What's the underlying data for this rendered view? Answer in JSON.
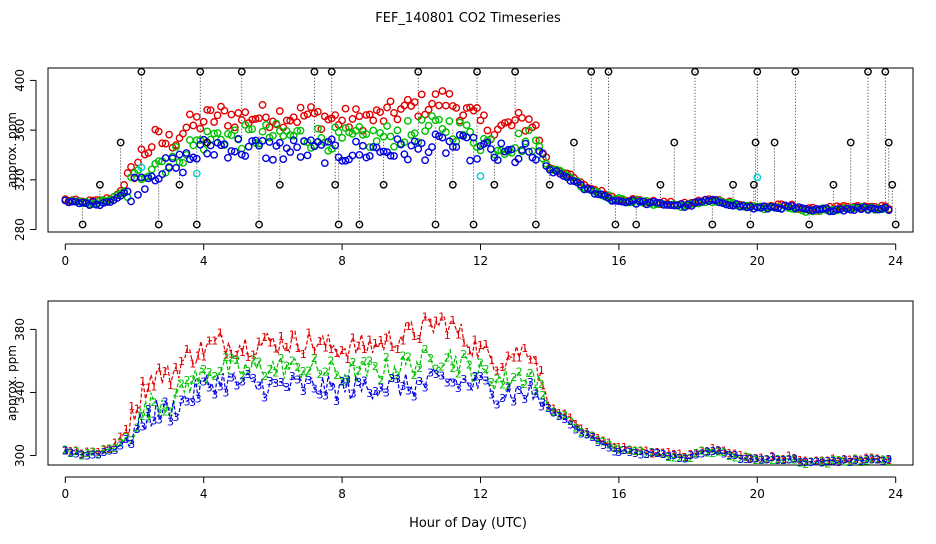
{
  "title": "FEF_140801  CO2 Timeseries",
  "xlabel": "Hour of Day (UTC)",
  "colors": {
    "series1": "#e00000",
    "series2": "#00c000",
    "series3": "#0000e0",
    "outlier": "#000000",
    "flag": "#00d0d0",
    "axis": "#000000"
  },
  "chart_data": [
    {
      "type": "scatter",
      "panel": "top",
      "ylabel": "approx. ppm",
      "xlim": [
        -0.5,
        24.5
      ],
      "ylim": [
        278,
        410
      ],
      "xticks": [
        0,
        4,
        8,
        12,
        16,
        20,
        24
      ],
      "yticks": [
        280,
        320,
        360,
        400
      ],
      "xtick_labels": [
        "0",
        "4",
        "8",
        "12",
        "16",
        "20",
        "24"
      ],
      "ytick_labels": [
        "280",
        "320",
        "360",
        "400"
      ],
      "grid": false,
      "outlier_high": 407,
      "outlier_low": 284,
      "marker": "circle",
      "series_keys": [
        "s1",
        "s2",
        "s3"
      ],
      "profile": {
        "hours": [
          0,
          0.5,
          1.0,
          1.4,
          1.8,
          2.2,
          2.6,
          3.0,
          3.5,
          4.0,
          4.5,
          5.0,
          6.0,
          7.0,
          8.0,
          9.0,
          10.0,
          11.0,
          12.0,
          12.5,
          13.0,
          13.5,
          14.0,
          14.5,
          15.0,
          15.5,
          15.9,
          16.0,
          17.0,
          18.0,
          18.5,
          19.0,
          19.5,
          20.0,
          20.5,
          21.0,
          21.5,
          22.0,
          23.0,
          23.9
        ],
        "s1": [
          304,
          302,
          303,
          306,
          318,
          340,
          352,
          350,
          362,
          368,
          372,
          370,
          372,
          372,
          368,
          370,
          378,
          385,
          366,
          360,
          365,
          368,
          330,
          325,
          315,
          310,
          305,
          305,
          302,
          300,
          304,
          303,
          300,
          298,
          299,
          299,
          296,
          297,
          298,
          298
        ],
        "s2": [
          303,
          301,
          302,
          305,
          312,
          326,
          336,
          334,
          345,
          352,
          356,
          354,
          356,
          355,
          352,
          354,
          358,
          364,
          352,
          348,
          350,
          352,
          330,
          324,
          314,
          309,
          304,
          304,
          301,
          299,
          303,
          302,
          299,
          297,
          298,
          298,
          295,
          296,
          297,
          297
        ],
        "s3": [
          302,
          301,
          301,
          304,
          310,
          320,
          328,
          328,
          336,
          344,
          348,
          346,
          344,
          344,
          342,
          344,
          344,
          348,
          344,
          340,
          340,
          340,
          328,
          322,
          313,
          308,
          303,
          303,
          301,
          299,
          303,
          302,
          299,
          297,
          298,
          298,
          295,
          296,
          297,
          297
        ]
      },
      "outliers": [
        {
          "x": 0.5,
          "y": 284
        },
        {
          "x": 1.0,
          "y": 316
        },
        {
          "x": 1.6,
          "y": 350
        },
        {
          "x": 2.2,
          "y": 407
        },
        {
          "x": 2.7,
          "y": 284
        },
        {
          "x": 3.3,
          "y": 316
        },
        {
          "x": 3.8,
          "y": 284
        },
        {
          "x": 3.9,
          "y": 407
        },
        {
          "x": 4.1,
          "y": 350
        },
        {
          "x": 5.1,
          "y": 407
        },
        {
          "x": 5.6,
          "y": 284
        },
        {
          "x": 6.2,
          "y": 316
        },
        {
          "x": 7.2,
          "y": 407
        },
        {
          "x": 7.7,
          "y": 407
        },
        {
          "x": 7.8,
          "y": 316
        },
        {
          "x": 7.9,
          "y": 284
        },
        {
          "x": 8.5,
          "y": 284
        },
        {
          "x": 9.2,
          "y": 316
        },
        {
          "x": 10.2,
          "y": 407
        },
        {
          "x": 10.7,
          "y": 284
        },
        {
          "x": 11.2,
          "y": 316
        },
        {
          "x": 11.8,
          "y": 284
        },
        {
          "x": 11.9,
          "y": 407
        },
        {
          "x": 12.4,
          "y": 316
        },
        {
          "x": 13.0,
          "y": 407
        },
        {
          "x": 13.6,
          "y": 284
        },
        {
          "x": 14.0,
          "y": 316
        },
        {
          "x": 14.7,
          "y": 350
        },
        {
          "x": 15.2,
          "y": 407
        },
        {
          "x": 15.7,
          "y": 407
        },
        {
          "x": 15.9,
          "y": 284
        },
        {
          "x": 16.5,
          "y": 284
        },
        {
          "x": 17.2,
          "y": 316
        },
        {
          "x": 17.6,
          "y": 350
        },
        {
          "x": 18.2,
          "y": 407
        },
        {
          "x": 18.7,
          "y": 284
        },
        {
          "x": 19.3,
          "y": 316
        },
        {
          "x": 19.8,
          "y": 284
        },
        {
          "x": 19.9,
          "y": 316
        },
        {
          "x": 19.95,
          "y": 350
        },
        {
          "x": 20.0,
          "y": 407
        },
        {
          "x": 20.5,
          "y": 350
        },
        {
          "x": 21.1,
          "y": 407
        },
        {
          "x": 21.5,
          "y": 284
        },
        {
          "x": 22.2,
          "y": 316
        },
        {
          "x": 22.7,
          "y": 350
        },
        {
          "x": 23.2,
          "y": 407
        },
        {
          "x": 23.7,
          "y": 407
        },
        {
          "x": 23.8,
          "y": 350
        },
        {
          "x": 23.9,
          "y": 316
        },
        {
          "x": 24.0,
          "y": 284
        }
      ],
      "flags": [
        {
          "x": 2.2,
          "y": 330
        },
        {
          "x": 3.8,
          "y": 325
        },
        {
          "x": 12.0,
          "y": 323
        },
        {
          "x": 20.0,
          "y": 322
        }
      ]
    },
    {
      "type": "line",
      "panel": "bottom",
      "ylabel": "approx. ppm",
      "xlim": [
        -0.5,
        24.5
      ],
      "ylim": [
        294,
        398
      ],
      "xticks": [
        0,
        4,
        8,
        12,
        16,
        20,
        24
      ],
      "yticks": [
        300,
        340,
        380
      ],
      "xtick_labels": [
        "0",
        "4",
        "8",
        "12",
        "16",
        "20",
        "24"
      ],
      "ytick_labels": [
        "300",
        "340",
        "380"
      ],
      "grid": false,
      "markers": [
        "1",
        "2",
        "3"
      ],
      "segments": [
        [
          0,
          13.8
        ],
        [
          13.8,
          15.9
        ],
        [
          16.0,
          19.7
        ],
        [
          19.8,
          23.9
        ]
      ]
    }
  ]
}
